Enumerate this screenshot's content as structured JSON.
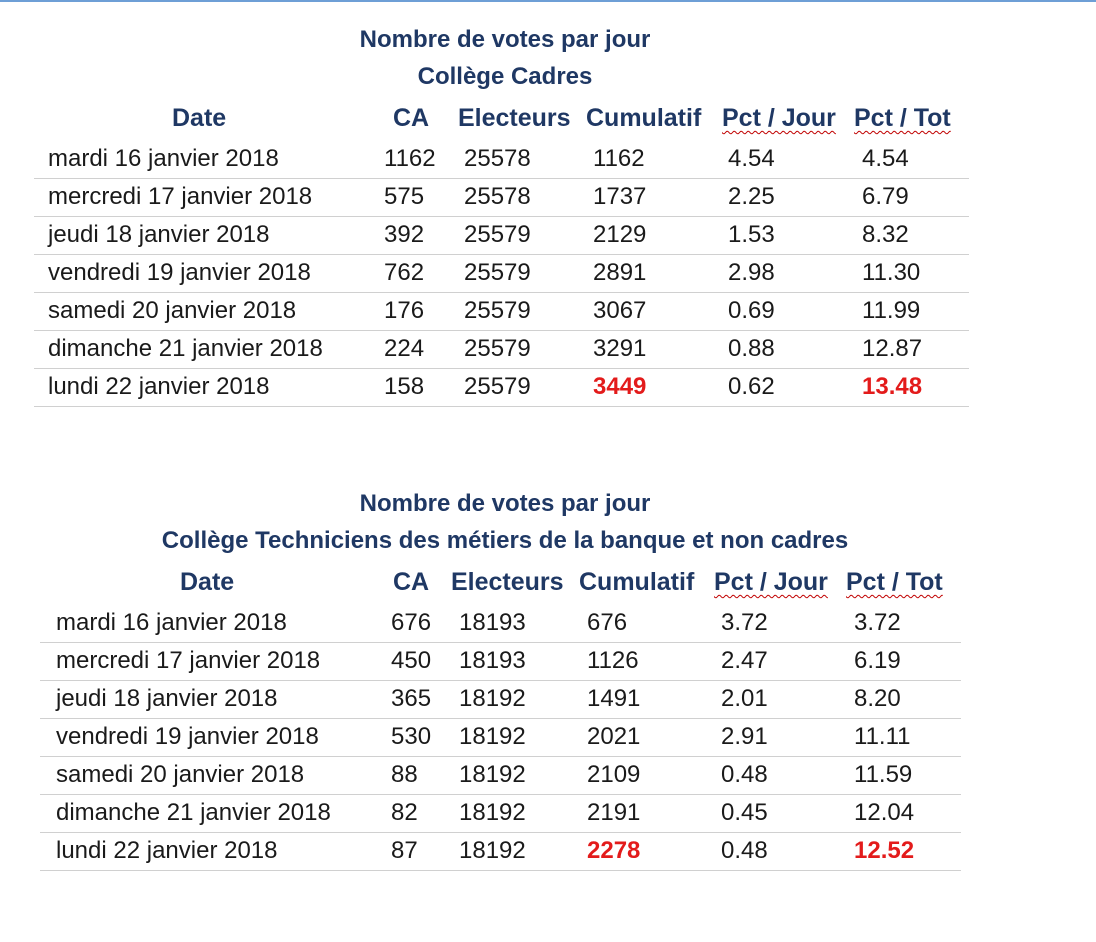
{
  "colors": {
    "title": "#1f3864",
    "highlight": "#e31b1b",
    "rule": "#d0d0d0"
  },
  "headers": {
    "date": "Date",
    "ca": "CA",
    "electeurs": "Electeurs",
    "cumulatif": "Cumulatif",
    "pct_jour": "Pct / Jour",
    "pct_tot": "Pct / Tot"
  },
  "tables": [
    {
      "title1": "Nombre de votes par jour",
      "title2": "Collège Cadres",
      "rows": [
        {
          "date": "mardi 16 janvier 2018",
          "ca": "1162",
          "electeurs": "25578",
          "cumulatif": "1162",
          "pct_jour": "4.54",
          "pct_tot": "4.54"
        },
        {
          "date": "mercredi 17 janvier 2018",
          "ca": "575",
          "electeurs": "25578",
          "cumulatif": "1737",
          "pct_jour": "2.25",
          "pct_tot": "6.79"
        },
        {
          "date": "jeudi 18 janvier 2018",
          "ca": "392",
          "electeurs": "25579",
          "cumulatif": "2129",
          "pct_jour": "1.53",
          "pct_tot": "8.32"
        },
        {
          "date": "vendredi 19 janvier 2018",
          "ca": "762",
          "electeurs": "25579",
          "cumulatif": "2891",
          "pct_jour": "2.98",
          "pct_tot": "11.30"
        },
        {
          "date": "samedi 20 janvier 2018",
          "ca": "176",
          "electeurs": "25579",
          "cumulatif": "3067",
          "pct_jour": "0.69",
          "pct_tot": "11.99"
        },
        {
          "date": "dimanche 21 janvier 2018",
          "ca": "224",
          "electeurs": "25579",
          "cumulatif": "3291",
          "pct_jour": "0.88",
          "pct_tot": "12.87"
        },
        {
          "date": "lundi 22 janvier 2018",
          "ca": "158",
          "electeurs": "25579",
          "cumulatif": "3449",
          "pct_jour": "0.62",
          "pct_tot": "13.48"
        }
      ]
    },
    {
      "title1": "Nombre de votes par jour",
      "title2": "Collège Techniciens des métiers de la banque et non cadres",
      "rows": [
        {
          "date": "mardi 16 janvier 2018",
          "ca": "676",
          "electeurs": "18193",
          "cumulatif": "676",
          "pct_jour": "3.72",
          "pct_tot": "3.72"
        },
        {
          "date": "mercredi 17 janvier 2018",
          "ca": "450",
          "electeurs": "18193",
          "cumulatif": "1126",
          "pct_jour": "2.47",
          "pct_tot": "6.19"
        },
        {
          "date": "jeudi 18 janvier 2018",
          "ca": "365",
          "electeurs": "18192",
          "cumulatif": "1491",
          "pct_jour": "2.01",
          "pct_tot": "8.20"
        },
        {
          "date": "vendredi 19 janvier 2018",
          "ca": "530",
          "electeurs": "18192",
          "cumulatif": "2021",
          "pct_jour": "2.91",
          "pct_tot": "11.11"
        },
        {
          "date": "samedi 20 janvier 2018",
          "ca": "88",
          "electeurs": "18192",
          "cumulatif": "2109",
          "pct_jour": "0.48",
          "pct_tot": "11.59"
        },
        {
          "date": "dimanche 21 janvier 2018",
          "ca": "82",
          "electeurs": "18192",
          "cumulatif": "2191",
          "pct_jour": "0.45",
          "pct_tot": "12.04"
        },
        {
          "date": "lundi 22 janvier 2018",
          "ca": "87",
          "electeurs": "18192",
          "cumulatif": "2278",
          "pct_jour": "0.48",
          "pct_tot": "12.52"
        }
      ]
    }
  ]
}
